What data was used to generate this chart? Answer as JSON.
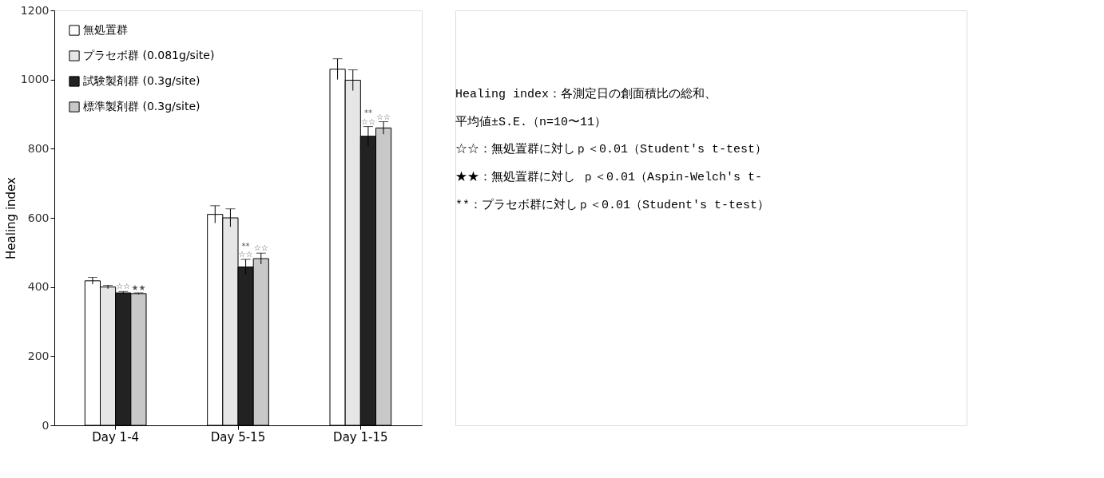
{
  "chart_data": {
    "type": "bar",
    "ylabel": "Healing index",
    "categories": [
      "Day 1-4",
      "Day 5-15",
      "Day 1-15"
    ],
    "series": [
      {
        "name": "無処置群",
        "color": "#ffffff",
        "values": [
          418,
          610,
          1030
        ],
        "errors": [
          10,
          25,
          30
        ]
      },
      {
        "name": "プラセボ群 (0.081g/site)",
        "color": "#e6e6e6",
        "values": [
          400,
          600,
          998
        ],
        "errors": [
          5,
          26,
          30
        ]
      },
      {
        "name": "試験製剤群 (0.3g/site)",
        "color": "#222222",
        "values": [
          383,
          458,
          836
        ],
        "errors": [
          4,
          22,
          28
        ]
      },
      {
        "name": "標準製剤群 (0.3g/site)",
        "color": "#c8c8c8",
        "values": [
          381,
          482,
          860
        ],
        "errors": [
          2,
          16,
          18
        ]
      }
    ],
    "ylim": [
      0,
      1200
    ],
    "yticks": [
      0,
      200,
      400,
      600,
      800,
      {
        "value": 1000,
        "label": "1000"
      },
      {
        "value": 1200,
        "label": "1200"
      }
    ],
    "grid": false,
    "legend": "top left",
    "annotations": [
      {
        "text": "☆☆",
        "x": "Day 1-4",
        "y": 390
      },
      {
        "text": "★★",
        "x": "Day 1-4",
        "y": 386
      },
      {
        "text": "☆☆",
        "x": "Day 5-15",
        "y": 482
      },
      {
        "text": "**",
        "x": "Day 5-15",
        "y": 497
      },
      {
        "text": "☆☆",
        "x": "Day 5-15",
        "y": 500
      },
      {
        "text": "☆☆",
        "x": "Day 1-15",
        "y": 866
      },
      {
        "text": "**",
        "x": "Day 1-15",
        "y": 877
      },
      {
        "text": "☆☆",
        "x": "Day 1-15",
        "y": 880
      },
      "Healing index：各測定日の創面積比の総和、",
      "平均値±S.E.（n=10〜11）",
      "☆☆：無処置群に対しｐ＜0.01（Student's t-test）",
      "★★：無処置群に対し ｐ＜0.01（Aspin-Welch's t-",
      "**：プラセボ群に対しｐ＜0.01（Student's t-test）"
    ]
  }
}
